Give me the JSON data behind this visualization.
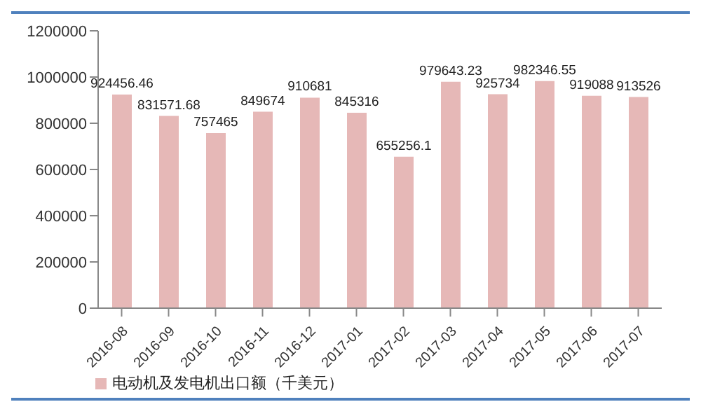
{
  "chart_data": {
    "type": "bar",
    "categories": [
      "2016-08",
      "2016-09",
      "2016-10",
      "2016-11",
      "2016-12",
      "2017-01",
      "2017-02",
      "2017-03",
      "2017-04",
      "2017-05",
      "2017-06",
      "2017-07"
    ],
    "series": [
      {
        "name": "电动机及发电机出口额（千美元）",
        "color": "#e6b8b7",
        "values": [
          924456.46,
          831571.68,
          757465,
          849674,
          910681,
          845316,
          655256.1,
          979643.23,
          925734,
          982346.55,
          919088,
          913526
        ]
      }
    ],
    "ylim": [
      0,
      1200000
    ],
    "yticks": [
      0,
      200000,
      400000,
      600000,
      800000,
      1000000,
      1200000
    ],
    "grid": false,
    "legend": "bottom left",
    "data_labels": true
  }
}
